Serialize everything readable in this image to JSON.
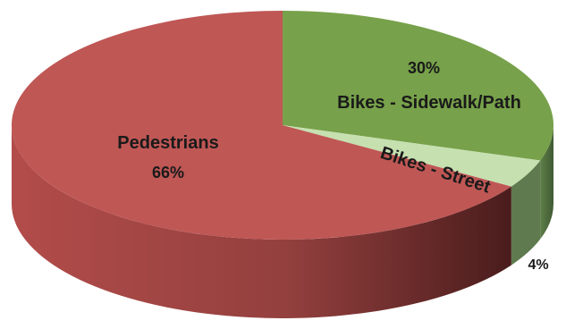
{
  "chart_data": {
    "type": "pie",
    "style": "3d",
    "categories": [
      "Bikes - Sidewalk/Path",
      "Bikes - Street",
      "Pedestrians"
    ],
    "values": [
      30,
      4,
      66
    ],
    "value_labels": [
      "30%",
      "4%",
      "66%"
    ],
    "colors": [
      "#77a14a",
      "#c6e0b0",
      "#bf5755"
    ],
    "side_colors": [
      "#5a7a3b",
      "#5f7a4e",
      "#8f3b3a"
    ],
    "legend": "none"
  }
}
